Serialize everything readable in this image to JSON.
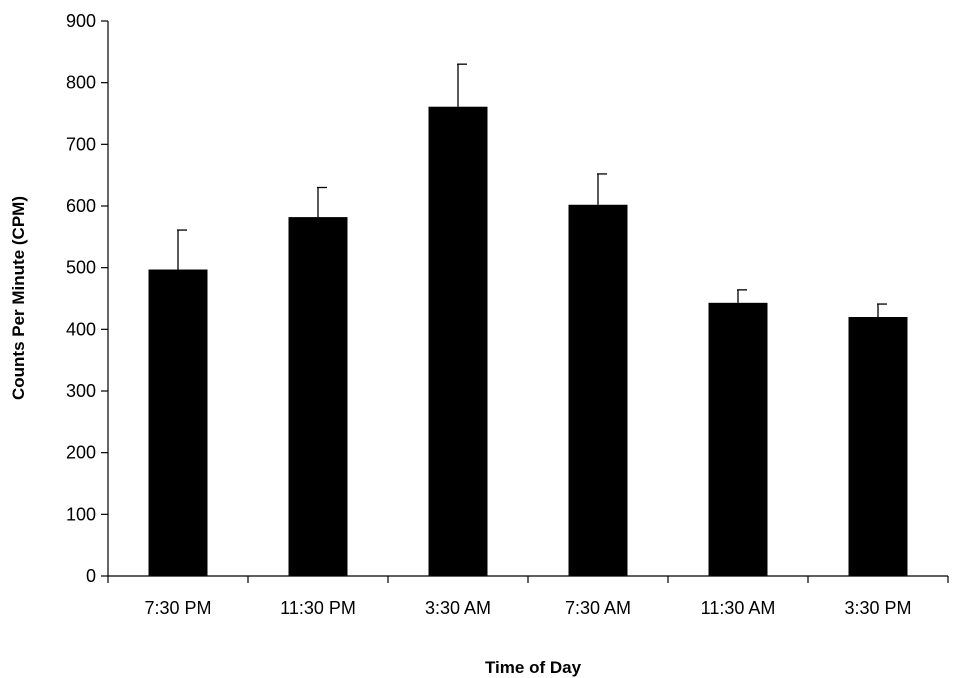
{
  "chart_data": {
    "type": "bar",
    "title": "",
    "xlabel": "Time of Day",
    "ylabel": "Counts Per Minute (CPM)",
    "categories": [
      "7:30 PM",
      "11:30 PM",
      "3:30 AM",
      "7:30 AM",
      "11:30 AM",
      "3:30 PM"
    ],
    "values": [
      497,
      582,
      761,
      602,
      443,
      420
    ],
    "error_plus": [
      64,
      48,
      69,
      50,
      21,
      21
    ],
    "ylim": [
      0,
      900
    ],
    "yticks": [
      0,
      100,
      200,
      300,
      400,
      500,
      600,
      700,
      800,
      900
    ],
    "grid": false,
    "legend": "none",
    "bar_color": "#000000"
  }
}
